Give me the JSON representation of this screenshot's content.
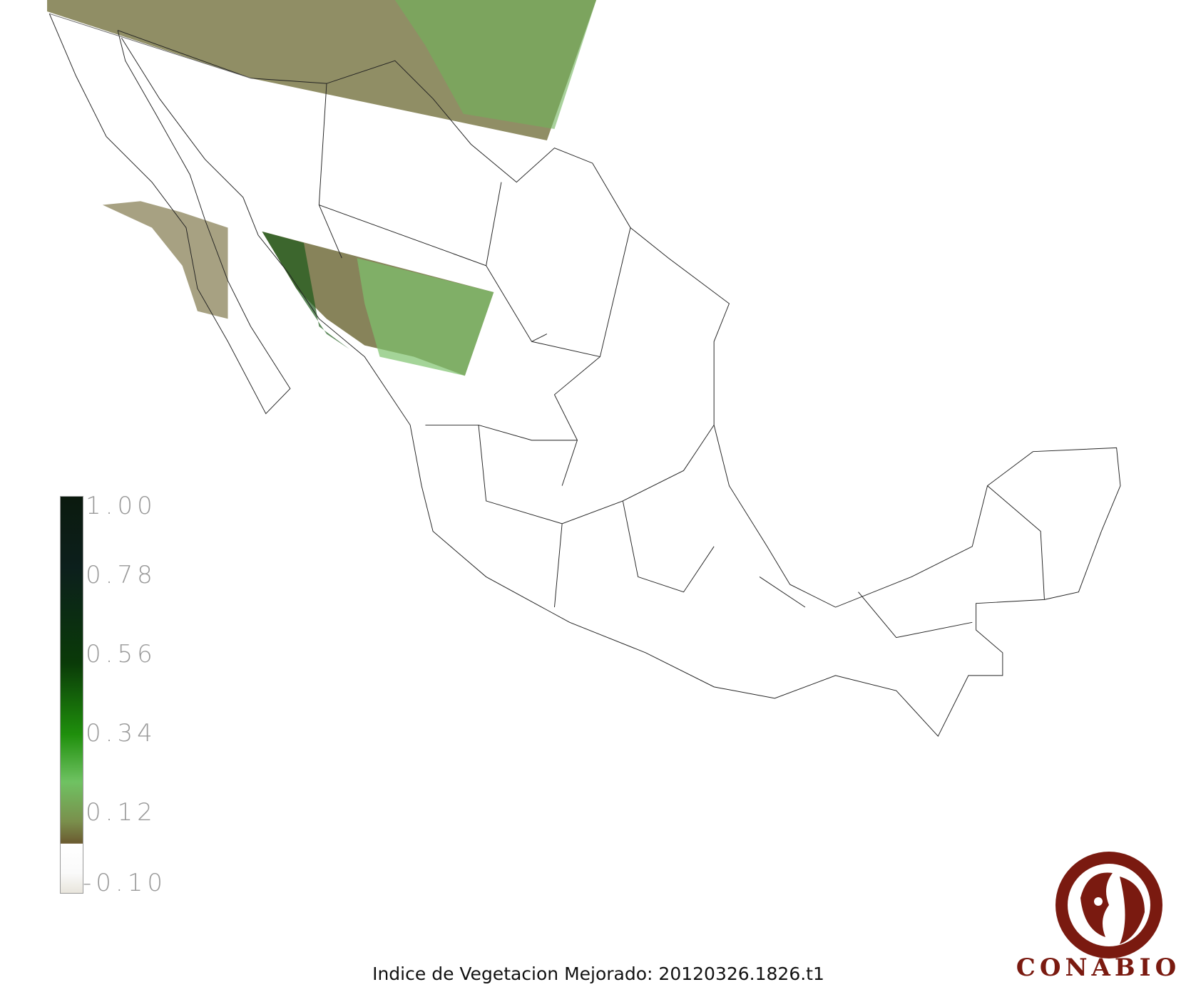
{
  "title": "Indice de Vegetacion Mejorado: 20120326.1826.t1",
  "legend": {
    "ticks": [
      "1.00",
      "0.78",
      "0.56",
      "0.34",
      "0.12",
      "-0.10"
    ],
    "range": [
      -0.1,
      1.0
    ],
    "colors": {
      "high": "#0b1a0e",
      "mid": "#1f8f0c",
      "light": "#6fc262",
      "low": "#6b5a30",
      "none": "#ffffff"
    }
  },
  "logo": {
    "text": "CONABIO",
    "color": "#7a1a10"
  }
}
